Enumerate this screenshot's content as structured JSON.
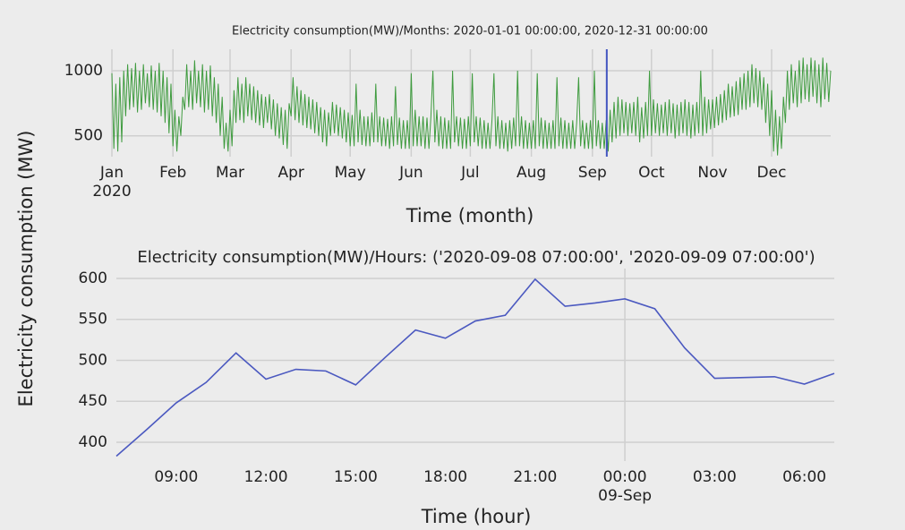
{
  "chart_data": [
    {
      "type": "line",
      "title": "Electricity consumption(MW)/Months: 2020-01-01 00:00:00, 2020-12-31 00:00:00",
      "xlabel": "Time (month)",
      "ylabel": "Electricity consumption (MW)",
      "color": "#3f9b3f",
      "grid": true,
      "xlim": [
        0,
        365
      ],
      "ylim": [
        340,
        1165
      ],
      "xticks": [
        {
          "value": 0,
          "label": "Jan\n2020"
        },
        {
          "value": 31,
          "label": "Feb"
        },
        {
          "value": 60,
          "label": "Mar"
        },
        {
          "value": 91,
          "label": "Apr"
        },
        {
          "value": 121,
          "label": "May"
        },
        {
          "value": 152,
          "label": "Jun"
        },
        {
          "value": 182,
          "label": "Jul"
        },
        {
          "value": 213,
          "label": "Aug"
        },
        {
          "value": 244,
          "label": "Sep"
        },
        {
          "value": 274,
          "label": "Oct"
        },
        {
          "value": 305,
          "label": "Nov"
        },
        {
          "value": 335,
          "label": "Dec"
        }
      ],
      "yticks": [
        500,
        1000
      ],
      "marker_x": 251.29,
      "marker_color": "#4355c0",
      "x": [
        0,
        1,
        2,
        3,
        4,
        5,
        6,
        7,
        8,
        9,
        10,
        11,
        12,
        13,
        14,
        15,
        16,
        17,
        18,
        19,
        20,
        21,
        22,
        23,
        24,
        25,
        26,
        27,
        28,
        29,
        30,
        31,
        32,
        33,
        34,
        35,
        36,
        37,
        38,
        39,
        40,
        41,
        42,
        43,
        44,
        45,
        46,
        47,
        48,
        49,
        50,
        51,
        52,
        53,
        54,
        55,
        56,
        57,
        58,
        59,
        60,
        61,
        62,
        63,
        64,
        65,
        66,
        67,
        68,
        69,
        70,
        71,
        72,
        73,
        74,
        75,
        76,
        77,
        78,
        79,
        80,
        81,
        82,
        83,
        84,
        85,
        86,
        87,
        88,
        89,
        90,
        91,
        92,
        93,
        94,
        95,
        96,
        97,
        98,
        99,
        100,
        101,
        102,
        103,
        104,
        105,
        106,
        107,
        108,
        109,
        110,
        111,
        112,
        113,
        114,
        115,
        116,
        117,
        118,
        119,
        120,
        121,
        122,
        123,
        124,
        125,
        126,
        127,
        128,
        129,
        130,
        131,
        132,
        133,
        134,
        135,
        136,
        137,
        138,
        139,
        140,
        141,
        142,
        143,
        144,
        145,
        146,
        147,
        148,
        149,
        150,
        151,
        152,
        153,
        154,
        155,
        156,
        157,
        158,
        159,
        160,
        161,
        162,
        163,
        164,
        165,
        166,
        167,
        168,
        169,
        170,
        171,
        172,
        173,
        174,
        175,
        176,
        177,
        178,
        179,
        180,
        181,
        182,
        183,
        184,
        185,
        186,
        187,
        188,
        189,
        190,
        191,
        192,
        193,
        194,
        195,
        196,
        197,
        198,
        199,
        200,
        201,
        202,
        203,
        204,
        205,
        206,
        207,
        208,
        209,
        210,
        211,
        212,
        213,
        214,
        215,
        216,
        217,
        218,
        219,
        220,
        221,
        222,
        223,
        224,
        225,
        226,
        227,
        228,
        229,
        230,
        231,
        232,
        233,
        234,
        235,
        236,
        237,
        238,
        239,
        240,
        241,
        242,
        243,
        244,
        245,
        246,
        247,
        248,
        249,
        250,
        251,
        252,
        253,
        254,
        255,
        256,
        257,
        258,
        259,
        260,
        261,
        262,
        263,
        264,
        265,
        266,
        267,
        268,
        269,
        270,
        271,
        272,
        273,
        274,
        275,
        276,
        277,
        278,
        279,
        280,
        281,
        282,
        283,
        284,
        285,
        286,
        287,
        288,
        289,
        290,
        291,
        292,
        293,
        294,
        295,
        296,
        297,
        298,
        299,
        300,
        301,
        302,
        303,
        304,
        305,
        306,
        307,
        308,
        309,
        310,
        311,
        312,
        313,
        314,
        315,
        316,
        317,
        318,
        319,
        320,
        321,
        322,
        323,
        324,
        325,
        326,
        327,
        328,
        329,
        330,
        331,
        332,
        333,
        334,
        335,
        336,
        337,
        338,
        339,
        340,
        341,
        342,
        343,
        344,
        345,
        346,
        347,
        348,
        349,
        350,
        351,
        352,
        353,
        354,
        355,
        356,
        357,
        358,
        359,
        360,
        361,
        362,
        363,
        364,
        365
      ],
      "values": [
        980,
        400,
        900,
        380,
        950,
        450,
        1000,
        650,
        1050,
        700,
        1020,
        720,
        1060,
        680,
        1000,
        700,
        1050,
        750,
        980,
        720,
        1040,
        700,
        1000,
        680,
        1060,
        650,
        1000,
        600,
        950,
        520,
        900,
        420,
        700,
        380,
        650,
        500,
        800,
        700,
        1050,
        720,
        1000,
        700,
        1080,
        750,
        1000,
        720,
        1050,
        680,
        1000,
        700,
        1040,
        650,
        950,
        600,
        900,
        500,
        800,
        400,
        600,
        380,
        700,
        420,
        850,
        600,
        950,
        620,
        900,
        600,
        950,
        650,
        900,
        620,
        880,
        600,
        850,
        580,
        820,
        560,
        800,
        600,
        820,
        550,
        780,
        500,
        750,
        480,
        720,
        430,
        700,
        400,
        750,
        650,
        950,
        620,
        880,
        600,
        850,
        580,
        820,
        560,
        800,
        550,
        780,
        520,
        760,
        500,
        720,
        450,
        700,
        420,
        680,
        500,
        760,
        520,
        740,
        500,
        720,
        480,
        700,
        450,
        680,
        420,
        660,
        420,
        900,
        450,
        700,
        430,
        650,
        420,
        650,
        420,
        680,
        450,
        900,
        450,
        650,
        420,
        640,
        420,
        630,
        400,
        650,
        420,
        880,
        430,
        640,
        400,
        620,
        400,
        620,
        400,
        980,
        420,
        700,
        420,
        650,
        420,
        650,
        400,
        640,
        400,
        650,
        1000,
        450,
        700,
        420,
        650,
        400,
        640,
        400,
        620,
        400,
        1000,
        450,
        650,
        420,
        640,
        400,
        630,
        400,
        650,
        420,
        980,
        450,
        650,
        420,
        640,
        400,
        620,
        400,
        600,
        400,
        620,
        980,
        420,
        650,
        400,
        620,
        400,
        600,
        380,
        620,
        400,
        640,
        420,
        1000,
        420,
        650,
        400,
        620,
        400,
        600,
        400,
        620,
        400,
        980,
        420,
        640,
        400,
        620,
        400,
        600,
        400,
        620,
        400,
        950,
        420,
        640,
        400,
        620,
        400,
        600,
        400,
        620,
        400,
        600,
        950,
        420,
        620,
        400,
        600,
        400,
        620,
        400,
        1000,
        420,
        620,
        400,
        600,
        400,
        620,
        380,
        700,
        450,
        760,
        480,
        800,
        500,
        780,
        520,
        760,
        500,
        750,
        520,
        760,
        500,
        800,
        450,
        720,
        480,
        760,
        500,
        1000,
        500,
        780,
        520,
        750,
        500,
        740,
        520,
        760,
        500,
        780,
        520,
        750,
        480,
        740,
        500,
        760,
        520,
        780,
        500,
        760,
        480,
        740,
        500,
        760,
        520,
        1000,
        500,
        800,
        520,
        780,
        550,
        780,
        560,
        800,
        580,
        820,
        600,
        850,
        620,
        900,
        640,
        880,
        650,
        920,
        660,
        950,
        700,
        980,
        700,
        1000,
        720,
        1050,
        750,
        1020,
        720,
        1000,
        700,
        950,
        600,
        900,
        500,
        850,
        380,
        700,
        350,
        650,
        400,
        800,
        600,
        1000,
        700,
        1050,
        750,
        1000,
        720,
        1080,
        750,
        1100,
        780,
        1050,
        760,
        1100,
        800,
        1080,
        750,
        1050,
        720,
        1100,
        780,
        1060,
        760,
        1000
      ]
    },
    {
      "type": "line",
      "title": "Electricity consumption(MW)/Hours: ('2020-09-08 07:00:00', '2020-09-09 07:00:00')",
      "xlabel": "Time (hour)",
      "color": "#4b59c0",
      "grid": true,
      "categories": [
        null,
        null,
        "09:00",
        null,
        null,
        "12:00",
        null,
        null,
        "15:00",
        null,
        null,
        "18:00",
        null,
        null,
        "21:00",
        null,
        null,
        "00:00\n09-Sep",
        null,
        null,
        "03:00",
        null,
        null,
        "06:00",
        null
      ],
      "values": [
        383,
        415,
        448,
        473,
        509,
        477,
        489,
        487,
        470,
        504,
        537,
        527,
        548,
        555,
        599,
        566,
        570,
        575,
        563,
        515,
        478,
        479,
        480,
        471,
        484
      ],
      "ylim": [
        377,
        612
      ],
      "yticks": [
        400,
        450,
        500,
        550,
        600
      ]
    }
  ]
}
